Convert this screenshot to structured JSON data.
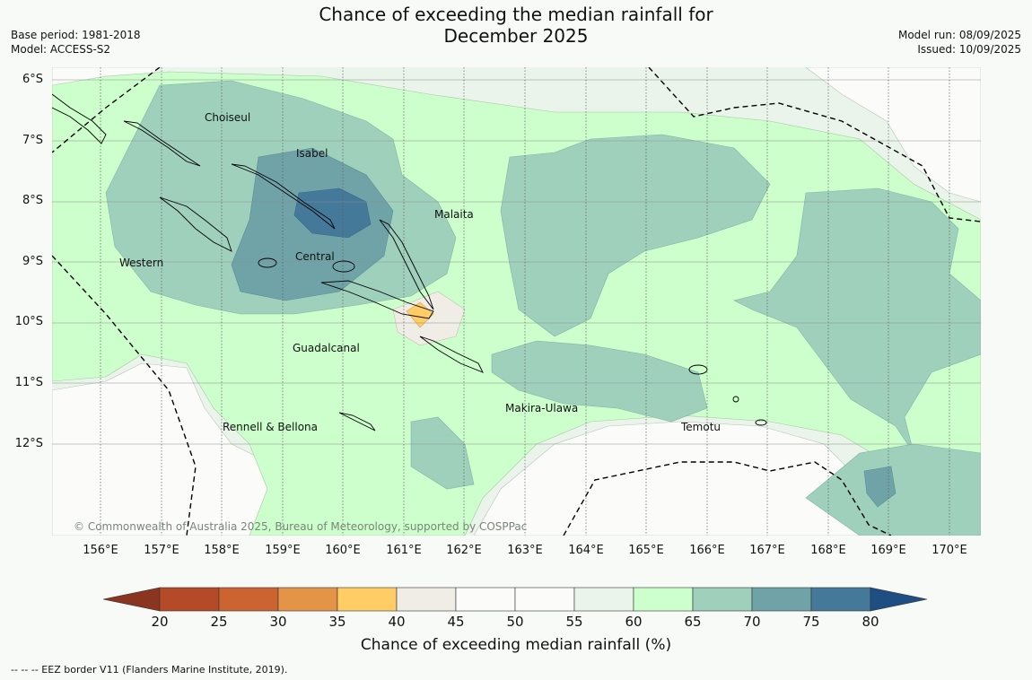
{
  "title_line1": "Chance of exceeding the median rainfall for",
  "title_line2": "December 2025",
  "base_period": "Base period: 1981-2018",
  "model": "Model: ACCESS-S2",
  "model_run": "Model run: 08/09/2025",
  "issued": "Issued: 10/09/2025",
  "lat_labels": [
    "6°S",
    "7°S",
    "8°S",
    "9°S",
    "10°S",
    "11°S",
    "12°S"
  ],
  "lon_labels": [
    "156°E",
    "157°E",
    "158°E",
    "159°E",
    "160°E",
    "161°E",
    "162°E",
    "163°E",
    "164°E",
    "165°E",
    "166°E",
    "167°E",
    "168°E",
    "169°E",
    "170°E"
  ],
  "regions": {
    "choiseul": "Choiseul",
    "isabel": "Isabel",
    "malaita": "Malaita",
    "western": "Western",
    "central": "Central",
    "guadalcanal": "Guadalcanal",
    "makira": "Makira-Ulawa",
    "rennell": "Rennell & Bellona",
    "temotu": "Temotu"
  },
  "copyright": "© Commonwealth of Australia 2025, Bureau of Meteorology, supported by COSPPac",
  "colorbar": {
    "ticks": [
      "20",
      "25",
      "30",
      "35",
      "40",
      "45",
      "50",
      "55",
      "60",
      "65",
      "70",
      "75",
      "80"
    ],
    "colors": [
      "#8b3420",
      "#b44a28",
      "#cc6432",
      "#e39447",
      "#ffcc66",
      "#f0ece6",
      "#fbfcfa",
      "#fbfcfa",
      "#eaf4ea",
      "#ccffcc",
      "#9ed0bc",
      "#6fa3a8",
      "#45799a",
      "#1f4e82"
    ],
    "label": "Chance of exceeding median rainfall (%)"
  },
  "eez_note": "--  --  -- EEZ border V11 (Flanders Marine Institute, 2019)."
}
